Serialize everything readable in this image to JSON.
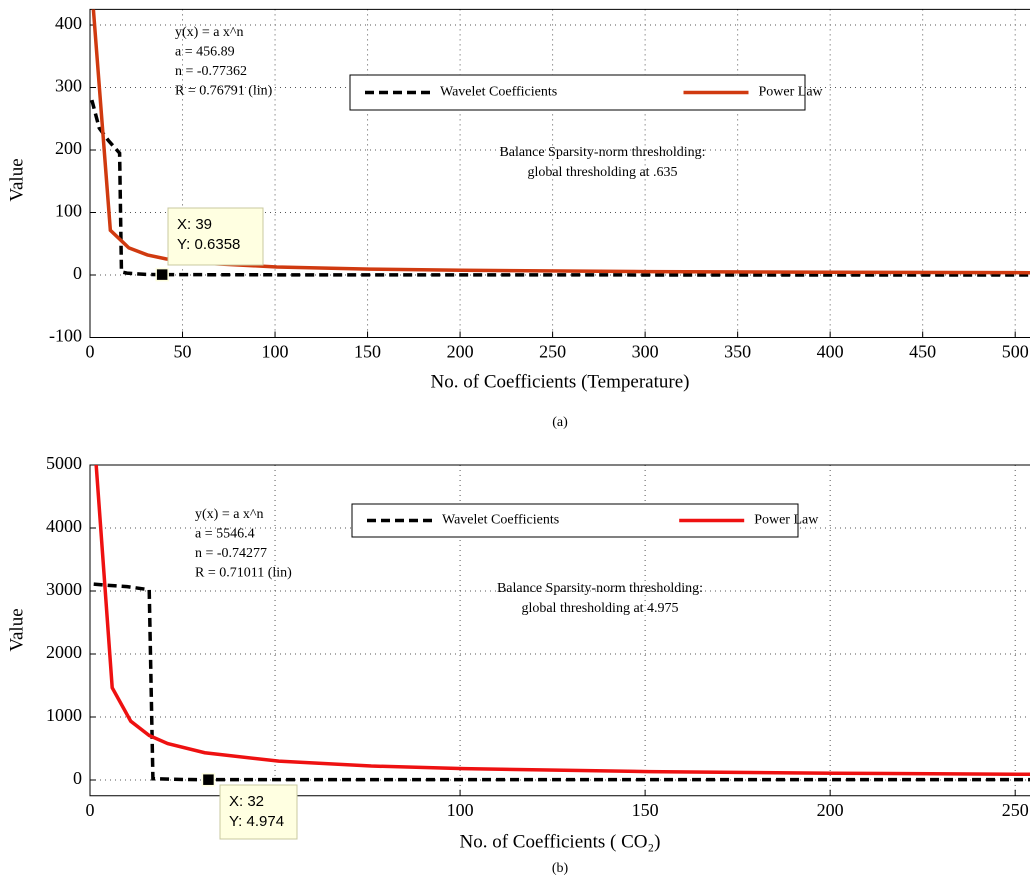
{
  "chart_data": [
    {
      "type": "line",
      "caption": "(a)",
      "xlabel": "No. of Coefficients (Temperature)",
      "ylabel": "Value",
      "xlim": [
        0,
        508
      ],
      "xticks": [
        0,
        50,
        100,
        150,
        200,
        250,
        300,
        350,
        400,
        450,
        500
      ],
      "ylim": [
        -100,
        425
      ],
      "yticks": [
        -100,
        0,
        100,
        200,
        300,
        400
      ],
      "grid": true,
      "legend": "top",
      "series": [
        {
          "name": "Wavelet Coefficients",
          "color": "#000000",
          "line_style": "dashed",
          "x": [
            1,
            5,
            10,
            16,
            17,
            20,
            30,
            39,
            100,
            200,
            300,
            400,
            508
          ],
          "values": [
            280,
            235,
            215,
            195,
            5,
            3,
            1,
            0.6358,
            0.3,
            0.2,
            0.1,
            0.1,
            0.1
          ]
        },
        {
          "name": "Power Law",
          "color": "#d03a10",
          "line_style": "solid",
          "x": [
            1,
            11,
            21,
            31,
            41,
            61,
            101,
            151,
            201,
            301,
            401,
            508
          ],
          "values": [
            456.89,
            71.5,
            43.4,
            32.1,
            25.8,
            19.0,
            12.9,
            9.4,
            7.6,
            5.5,
            4.4,
            3.7
          ]
        }
      ],
      "fit_text": [
        "y(x) = a x^n",
        "a = 456.89",
        "n = -0.77362",
        "R = 0.76791  (lin)"
      ],
      "note": [
        "Balance Sparsity-norm thresholding:",
        "global thresholding at .635"
      ],
      "datatip": {
        "x": 39,
        "y": 0.6358,
        "labels": [
          "X: 39",
          "Y: 0.6358"
        ]
      }
    },
    {
      "type": "line",
      "caption": "(b)",
      "xlabel": "No. of Coefficients ( CO₂)",
      "ylabel": "Value",
      "xlim": [
        0,
        254
      ],
      "xticks": [
        0,
        50,
        100,
        150,
        200,
        250
      ],
      "ylim": [
        -250,
        5000
      ],
      "yticks": [
        0,
        1000,
        2000,
        3000,
        4000,
        5000
      ],
      "grid": true,
      "legend": "top",
      "series": [
        {
          "name": "Wavelet Coefficients",
          "color": "#000000",
          "line_style": "dashed",
          "x": [
            1,
            5,
            10,
            16,
            17,
            25,
            32,
            100,
            254
          ],
          "values": [
            3110,
            3090,
            3070,
            3020,
            20,
            8,
            4.974,
            5,
            5
          ]
        },
        {
          "name": "Power Law",
          "color": "#ee1111",
          "line_style": "solid",
          "x": [
            1,
            6,
            11,
            16,
            21,
            31,
            51,
            76,
            101,
            151,
            201,
            254
          ],
          "values": [
            5546.4,
            1465,
            934,
            707,
            578,
            433,
            299,
            222,
            180,
            133,
            108,
            90.7
          ]
        }
      ],
      "fit_text": [
        "y(x) = a x^n",
        "a = 5546.4",
        "n = -0.74277",
        "R = 0.71011  (lin)"
      ],
      "note": [
        "Balance Sparsity-norm thresholding:",
        "global thresholding at 4.975"
      ],
      "datatip": {
        "x": 32,
        "y": 4.974,
        "labels": [
          "X: 32",
          "Y: 4.974"
        ]
      }
    }
  ]
}
